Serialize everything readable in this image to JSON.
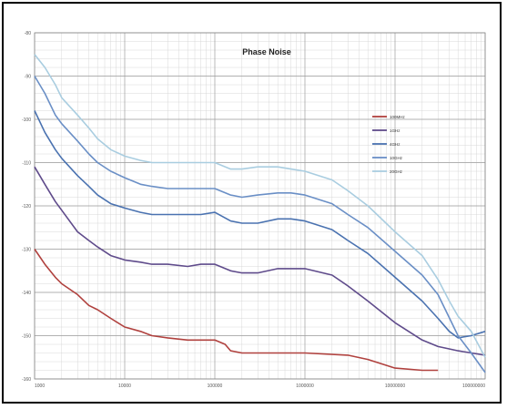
{
  "chart_data": {
    "type": "line",
    "title": "Phase Noise",
    "xscale": "log",
    "xlim": [
      1000,
      100000000
    ],
    "ylim": [
      -160,
      -80
    ],
    "grid": true,
    "legend_position": "right",
    "x_tick_labels": [
      "1000",
      "10000",
      "100000",
      "1000000",
      "10000000",
      "100000000"
    ],
    "y_tick_labels": [
      "-80",
      "-90",
      "-100",
      "-110",
      "-120",
      "-130",
      "-140",
      "-150",
      "-160"
    ],
    "series": [
      {
        "name": "100MHz",
        "color": "#b0413e",
        "x": [
          1000,
          1300,
          1700,
          2000,
          3000,
          4000,
          5000,
          7000,
          10000,
          15000,
          20000,
          30000,
          50000,
          100000,
          130000,
          150000,
          200000,
          500000,
          1000000,
          3000000,
          5000000,
          10000000,
          20000000,
          30000000
        ],
        "y": [
          -130,
          -133.5,
          -136.5,
          -138,
          -140.5,
          -143,
          -144,
          -146,
          -148,
          -149,
          -150,
          -150.5,
          -151,
          -151,
          -152,
          -153.5,
          -154,
          -154,
          -154,
          -154.5,
          -155.5,
          -157.5,
          -158,
          -158
        ]
      },
      {
        "name": "1GHz",
        "color": "#5f4b8b",
        "x": [
          1000,
          1300,
          1700,
          2000,
          3000,
          4000,
          5000,
          7000,
          10000,
          15000,
          20000,
          30000,
          50000,
          70000,
          100000,
          150000,
          200000,
          300000,
          500000,
          700000,
          1000000,
          2000000,
          3000000,
          5000000,
          10000000,
          20000000,
          30000000,
          50000000,
          100000000
        ],
        "y": [
          -111,
          -115,
          -119,
          -121,
          -126,
          -128,
          -129.5,
          -131.5,
          -132.5,
          -133,
          -133.5,
          -133.5,
          -134,
          -133.5,
          -133.5,
          -135,
          -135.5,
          -135.5,
          -134.5,
          -134.5,
          -134.5,
          -136,
          -138.5,
          -142,
          -147,
          -151,
          -152.5,
          -153.5,
          -154.5
        ]
      },
      {
        "name": "4GHz",
        "color": "#4a72b0",
        "x": [
          1000,
          1300,
          1700,
          2000,
          3000,
          4000,
          5000,
          7000,
          10000,
          15000,
          20000,
          30000,
          50000,
          70000,
          100000,
          150000,
          200000,
          300000,
          500000,
          700000,
          1000000,
          2000000,
          3000000,
          5000000,
          10000000,
          20000000,
          30000000,
          40000000,
          50000000,
          70000000,
          100000000
        ],
        "y": [
          -98,
          -103,
          -107,
          -109,
          -113,
          -115.5,
          -117.5,
          -119.5,
          -120.5,
          -121.5,
          -122,
          -122,
          -122,
          -122,
          -121.5,
          -123.5,
          -124,
          -124,
          -123,
          -123,
          -123.5,
          -125.5,
          -128,
          -131,
          -136.5,
          -142,
          -146,
          -149,
          -150.5,
          -150,
          -149
        ]
      },
      {
        "name": "10GHz",
        "color": "#6a8fc6",
        "x": [
          1000,
          1300,
          1700,
          2000,
          3000,
          4000,
          5000,
          7000,
          10000,
          15000,
          20000,
          30000,
          50000,
          70000,
          100000,
          150000,
          200000,
          300000,
          500000,
          700000,
          1000000,
          2000000,
          3000000,
          5000000,
          10000000,
          20000000,
          30000000,
          50000000,
          70000000,
          100000000
        ],
        "y": [
          -90,
          -94,
          -99,
          -101,
          -105,
          -108,
          -110,
          -112,
          -113.5,
          -115,
          -115.5,
          -116,
          -116,
          -116,
          -116,
          -117.5,
          -118,
          -117.5,
          -117,
          -117,
          -117.5,
          -119.5,
          -122,
          -125,
          -130.5,
          -136,
          -140.5,
          -150,
          -154,
          -158.5
        ]
      },
      {
        "name": "20GHz",
        "color": "#a9cde0",
        "x": [
          1000,
          1300,
          1700,
          2000,
          3000,
          4000,
          5000,
          7000,
          10000,
          15000,
          20000,
          30000,
          50000,
          70000,
          100000,
          150000,
          200000,
          300000,
          500000,
          700000,
          1000000,
          2000000,
          3000000,
          5000000,
          10000000,
          20000000,
          30000000,
          40000000,
          50000000,
          70000000,
          100000000
        ],
        "y": [
          -85,
          -88,
          -92,
          -95,
          -99,
          -102,
          -104.5,
          -107,
          -108.5,
          -109.5,
          -110,
          -110,
          -110,
          -110,
          -110,
          -111.5,
          -111.5,
          -111,
          -111,
          -111.5,
          -112,
          -114,
          -116.5,
          -120,
          -126,
          -131.5,
          -137,
          -142,
          -145.5,
          -149,
          -155
        ]
      }
    ]
  }
}
